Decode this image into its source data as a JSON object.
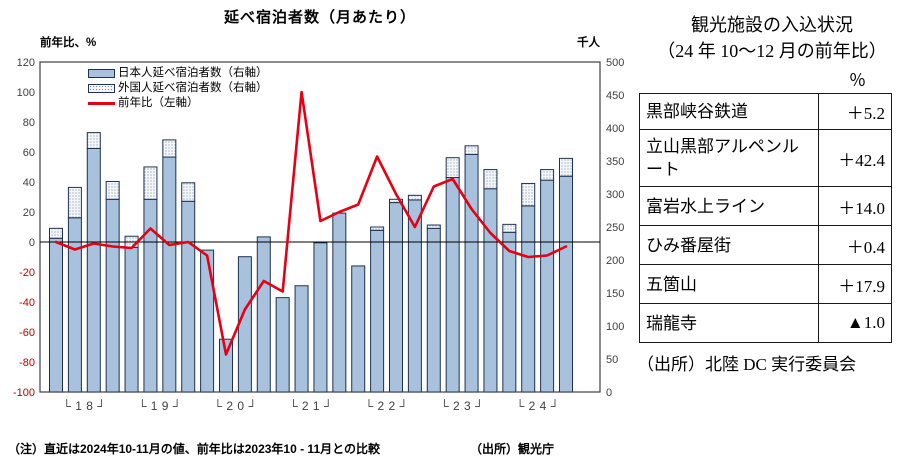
{
  "chart": {
    "title": "延べ宿泊者数（月あたり）",
    "left_axis_header": "前年比、%",
    "right_axis_header": "千人",
    "legend": [
      {
        "label": "日本人延べ宿泊者数（右軸）",
        "swatch": "blue-bar"
      },
      {
        "label": "外国人延べ宿泊者数（右軸）",
        "swatch": "dotted-bar"
      },
      {
        "label": "前年比（左軸）",
        "swatch": "red-line"
      }
    ],
    "footnote_left": "（注）直近は2024年10-11月の値、前年比は2023年10 - 11月との比較",
    "footnote_right": "（出所）観光庁"
  },
  "chart_data": {
    "type": "bar+line",
    "title": "延べ宿泊者数（月あたり）",
    "x_year_groups": [
      "18",
      "19",
      "20",
      "21",
      "22",
      "23",
      "24"
    ],
    "x_year_labels": [
      "└ 1 8 ┘",
      "└ 1 9 ┘",
      "└ 2 0 ┘",
      "└ 2 1 ┘",
      "└ 2 2 ┘",
      "└ 2 3 ┘",
      "└ 2 4 ┘"
    ],
    "quarters_per_year": 4,
    "series": [
      {
        "name": "日本人延べ宿泊者数（右軸）",
        "axis": "right",
        "unit": "千人",
        "values": [
          233,
          264,
          369,
          292,
          219,
          292,
          356,
          289,
          215,
          80,
          205,
          235,
          143,
          161,
          226,
          271,
          191,
          245,
          287,
          291,
          248,
          325,
          360,
          308,
          242,
          282,
          321,
          327
        ]
      },
      {
        "name": "外国人延べ宿泊者数（右軸）",
        "axis": "right",
        "unit": "千人",
        "values": [
          15,
          46,
          24,
          27,
          17,
          49,
          26,
          28,
          0,
          0,
          0,
          0,
          0,
          0,
          0,
          0,
          0,
          5,
          5,
          7,
          5,
          30,
          13,
          29,
          12,
          34,
          16,
          27
        ]
      }
    ],
    "line": {
      "name": "前年比（左軸）",
      "axis": "left",
      "unit": "%",
      "values": [
        0,
        -5,
        -1,
        -3,
        -4,
        9,
        -2,
        0,
        -9,
        -75,
        -45,
        -26,
        -33,
        100,
        14,
        20,
        25,
        57,
        32,
        10,
        37,
        42,
        22,
        6,
        -6,
        -10,
        -9,
        -3
      ]
    },
    "left_axis": {
      "label": "前年比、%",
      "min": -100,
      "max": 120,
      "ticks": [
        120,
        100,
        80,
        60,
        40,
        20,
        0,
        -20,
        -40,
        -60,
        -80,
        -100
      ]
    },
    "right_axis": {
      "label": "千人",
      "min": 0,
      "max": 500,
      "ticks": [
        500,
        450,
        400,
        350,
        300,
        250,
        200,
        150,
        100,
        50,
        0
      ]
    },
    "grid": false,
    "legend_position": "top-left-inside"
  },
  "table": {
    "title_line1": "観光施設の入込状況",
    "title_line2": "（24 年 10～12 月の前年比）",
    "unit": "％",
    "rows": [
      {
        "name": "黒部峡谷鉄道",
        "value": "＋5.2"
      },
      {
        "name": "立山黒部アルペンルート",
        "value": "＋42.4"
      },
      {
        "name": "富岩水上ライン",
        "value": "＋14.0"
      },
      {
        "name": "ひみ番屋街",
        "value": "＋0.4"
      },
      {
        "name": "五箇山",
        "value": "＋17.9"
      },
      {
        "name": "瑞龍寺",
        "value": "▲1.0"
      }
    ],
    "source": "（出所）北陸 DC 実行委員会"
  },
  "colors": {
    "bar_blue": "#a8c1dc",
    "bar_border": "#1f3250",
    "foreign_fill": "#f4f6f9",
    "foreign_dot": "#7e93a8",
    "line_red": "#e60013",
    "tick_gray": "#404040",
    "tick_negative_red": "#c00000",
    "axis_border": "#404040",
    "zero_line": "#000000"
  }
}
